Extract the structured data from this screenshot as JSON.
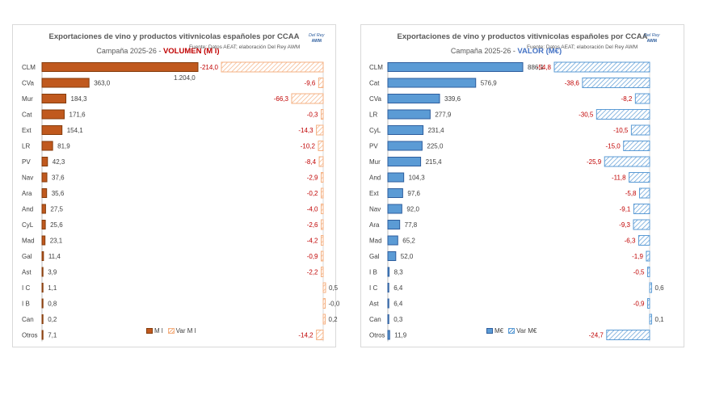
{
  "chart_data": [
    {
      "type": "bar",
      "title": "Exportaciones de vino y productos vitivnicolas españoles por CCAA",
      "subtitle": "Campaña 2025-26 - ",
      "subtitle_emphasis": "VOLUMEN (M l)",
      "source": "Fuente: Datos AEAT; elaboración Del Rey AWM",
      "logo_line1": "Del Rey",
      "logo_line2": "AWM",
      "orientation": "horizontal",
      "categories": [
        "CLM",
        "CVa",
        "Mur",
        "Cat",
        "Ext",
        "LR",
        "PV",
        "Nav",
        "Ara",
        "And",
        "CyL",
        "Mad",
        "Gal",
        "Ast",
        "I C",
        "I B",
        "Can",
        "Otros"
      ],
      "series": [
        {
          "name": "M l",
          "color": "#c0591e",
          "values": [
            1204.0,
            363.0,
            184.3,
            171.6,
            154.1,
            81.9,
            42.3,
            37.6,
            35.6,
            27.5,
            25.6,
            23.1,
            11.4,
            3.9,
            1.1,
            0.8,
            0.2,
            7.1
          ],
          "labels": [
            "1.204,0",
            "363,0",
            "184,3",
            "171,6",
            "154,1",
            "81,9",
            "42,3",
            "37,6",
            "35,6",
            "27,5",
            "25,6",
            "23,1",
            "11,4",
            "3,9",
            "1,1",
            "0,8",
            "0,2",
            "7,1"
          ]
        },
        {
          "name": "Var M l",
          "color": "#f4b183",
          "values": [
            -214.0,
            -9.6,
            -66.3,
            -0.3,
            -14.3,
            -10.2,
            -8.4,
            -2.9,
            -0.2,
            -4.0,
            -2.6,
            -4.2,
            -0.9,
            -2.2,
            0.5,
            -0.0,
            0.2,
            -14.2
          ],
          "labels": [
            "-214,0",
            "-9,6",
            "-66,3",
            "-0,3",
            "-14,3",
            "-10,2",
            "-8,4",
            "-2,9",
            "-0,2",
            "-4,0",
            "-2,6",
            "-4,2",
            "-0,9",
            "-2,2",
            "0,5",
            "-0,0",
            "0,2",
            "-14,2"
          ]
        }
      ],
      "negative_label_color": "#c00000",
      "accent_color": "#c00000"
    },
    {
      "type": "bar",
      "title": "Exportaciones de vino y productos vitivnicolas españoles por CCAA",
      "subtitle": "Campaña 2025-26 - ",
      "subtitle_emphasis": "VALOR (M€)",
      "source": "Fuente: Datos AEAT; elaboración Del Rey AWM",
      "logo_line1": "Del Rey",
      "logo_line2": "AWM",
      "orientation": "horizontal",
      "categories": [
        "CLM",
        "Cat",
        "CVa",
        "LR",
        "CyL",
        "PV",
        "Mur",
        "And",
        "Ext",
        "Nav",
        "Ara",
        "Mad",
        "Gal",
        "I B",
        "I C",
        "Ast",
        "Can",
        "Otros"
      ],
      "series": [
        {
          "name": "M€",
          "color": "#5b9bd5",
          "values": [
            886.1,
            576.9,
            339.6,
            277.9,
            231.4,
            225.0,
            215.4,
            104.3,
            97.6,
            92.0,
            77.8,
            65.2,
            52.0,
            8.3,
            6.4,
            6.4,
            0.3,
            11.9
          ],
          "labels": [
            "886,1",
            "576,9",
            "339,6",
            "277,9",
            "231,4",
            "225,0",
            "215,4",
            "104,3",
            "97,6",
            "92,0",
            "77,8",
            "65,2",
            "52,0",
            "8,3",
            "6,4",
            "6,4",
            "0,3",
            "11,9"
          ]
        },
        {
          "name": "Var M€",
          "color": "#9dc3e6",
          "values": [
            -54.8,
            -38.6,
            -8.2,
            -30.5,
            -10.5,
            -15.0,
            -25.9,
            -11.8,
            -5.8,
            -9.1,
            -9.3,
            -6.3,
            -1.9,
            -0.5,
            0.6,
            -0.9,
            0.1,
            -24.7
          ],
          "labels": [
            "-54,8",
            "-38,6",
            "-8,2",
            "-30,5",
            "-10,5",
            "-15,0",
            "-25,9",
            "-11,8",
            "-5,8",
            "-9,1",
            "-9,3",
            "-6,3",
            "-1,9",
            "-0,5",
            "0,6",
            "-0,9",
            "0,1",
            "-24,7"
          ]
        }
      ],
      "negative_label_color": "#c00000",
      "accent_color": "#4472c4"
    }
  ]
}
